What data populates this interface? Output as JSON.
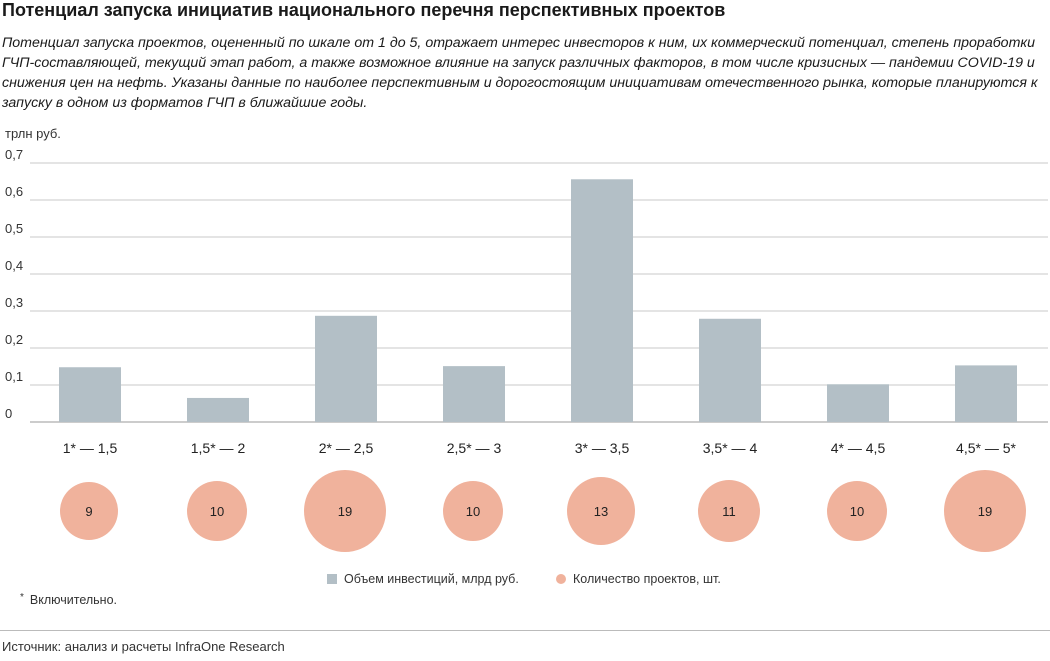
{
  "title": "Потенциал запуска инициатив национального перечня перспективных проектов",
  "subtitle": "Потенциал запуска проектов, оцененный по шкале от 1 до 5, отражает интерес инвесторов к ним, их коммерческий потенциал, степень проработки ГЧП-составляющей, текущий этап работ, а также возможное влияние на запуск различных факторов, в том числе кризисных — пандемии COVID-19 и снижения цен на нефть. Указаны данные по наиболее перспективным и дорогостоящим инициативам отечественного рынка, которые планируются к запуску в одном из форматов ГЧП в ближайшие годы.",
  "unit_label": "трлн руб.",
  "legend": {
    "investment": "Объем инвестиций, млрд руб.",
    "count": "Количество проектов, шт."
  },
  "footnote": {
    "marker": "*",
    "text": "Включительно."
  },
  "source": "Источник: анализ и расчеты InfraOne Research",
  "colors": {
    "bar": "#b3bfc6",
    "circle": "#f0b29c",
    "grid": "#c8c8c8"
  },
  "chart_data": {
    "type": "bar",
    "categories": [
      "1* — 1,5",
      "1,5* — 2",
      "2* — 2,5",
      "2,5* — 3",
      "3* — 3,5",
      "3,5* — 4",
      "4* — 4,5",
      "4,5* — 5*"
    ],
    "series": [
      {
        "name": "Объем инвестиций, млрд руб.",
        "values": [
          0.148,
          0.065,
          0.287,
          0.151,
          0.656,
          0.279,
          0.102,
          0.153
        ]
      },
      {
        "name": "Количество проектов, шт.",
        "values": [
          9,
          10,
          19,
          10,
          13,
          11,
          10,
          19
        ]
      }
    ],
    "ylabel": "трлн руб.",
    "ylim": [
      0,
      0.7
    ],
    "yticks": [
      0,
      0.1,
      0.2,
      0.3,
      0.4,
      0.5,
      0.6,
      0.7
    ],
    "ytick_labels": [
      "0",
      "0,1",
      "0,2",
      "0,3",
      "0,4",
      "0,5",
      "0,6",
      "0,7"
    ],
    "grid": true,
    "legend_position": "bottom"
  }
}
